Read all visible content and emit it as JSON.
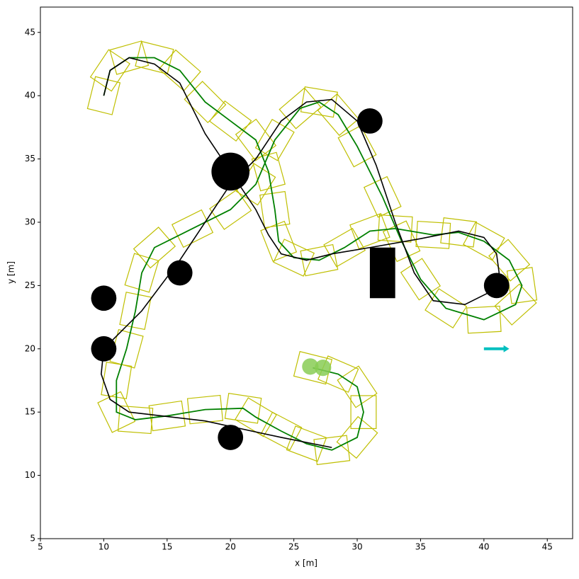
{
  "chart_data": {
    "type": "line",
    "xlabel": "x [m]",
    "ylabel": "y [m]",
    "xlim": [
      5,
      47
    ],
    "ylim": [
      5,
      47
    ],
    "xticks": [
      5,
      10,
      15,
      20,
      25,
      30,
      35,
      40,
      45
    ],
    "yticks": [
      5,
      10,
      15,
      20,
      25,
      30,
      35,
      40,
      45
    ],
    "path": {
      "color": "#008000",
      "footprint_color": "#bfbf00",
      "x": [
        10,
        10.5,
        12,
        14,
        16,
        18,
        20,
        22,
        23,
        23.5,
        23.8,
        25,
        27,
        29,
        31,
        33,
        36,
        38,
        40,
        42,
        43,
        42.5,
        40,
        37,
        35,
        33.5,
        32,
        30,
        28.5,
        27,
        25.5,
        23.5,
        22,
        20,
        17,
        14,
        13,
        12.5,
        11.8,
        11,
        11,
        12.5,
        15,
        18,
        21,
        22,
        24,
        26,
        28,
        30,
        30.5,
        30,
        28.5,
        26.5
      ],
      "y": [
        40,
        42,
        43,
        43,
        42,
        39.5,
        38,
        36.5,
        34,
        31,
        28.5,
        27.2,
        27,
        28,
        29.3,
        29.5,
        29,
        29.2,
        28.5,
        27,
        25,
        23.5,
        22.3,
        23.2,
        25.5,
        28.5,
        32,
        36,
        38.5,
        39.5,
        39,
        36.5,
        33,
        31,
        29.5,
        28,
        26,
        23,
        20,
        17.5,
        15,
        14.4,
        14.7,
        15.2,
        15.3,
        14.6,
        13.5,
        12.5,
        12,
        13,
        15,
        17,
        18,
        18.5
      ]
    },
    "reference": {
      "color": "#000000",
      "x": [
        10,
        10.5,
        12,
        14,
        16,
        18,
        20,
        22,
        23,
        24,
        26,
        28,
        31,
        35,
        38,
        40,
        41,
        41.2,
        40.5,
        38.5,
        36,
        34.5,
        33,
        31.5,
        30,
        28,
        26,
        24,
        22,
        20,
        18,
        16,
        13,
        10,
        9.8,
        10.5,
        12,
        18,
        24,
        28
      ],
      "y": [
        40,
        42,
        43,
        42.5,
        41,
        37,
        34,
        31,
        29,
        27.5,
        27,
        27.5,
        28,
        28.7,
        29.3,
        28.8,
        27.5,
        26,
        24.5,
        23.5,
        23.8,
        26,
        30,
        34.5,
        38,
        39.7,
        39.5,
        38,
        35,
        33,
        30,
        27,
        23,
        20,
        18,
        16,
        15,
        14.3,
        13,
        12.2
      ]
    },
    "obstacles": {
      "color": "#000000",
      "x": [
        20,
        31,
        16,
        10,
        10,
        20,
        41
      ],
      "y": [
        34,
        38,
        26,
        24,
        20,
        13,
        25
      ],
      "r": [
        1.5,
        1,
        1,
        1,
        1,
        1,
        1
      ]
    },
    "rect_obstacle": {
      "color": "#000000",
      "x": [
        31,
        33
      ],
      "y": [
        24,
        28
      ]
    },
    "goal_arrow": {
      "color": "#00bfbf",
      "x": [
        40,
        42
      ],
      "y": [
        20,
        20
      ]
    },
    "car": {
      "color": "#88cc55",
      "x": [
        26.3,
        27.3
      ],
      "y": [
        18.6,
        18.5
      ]
    }
  }
}
